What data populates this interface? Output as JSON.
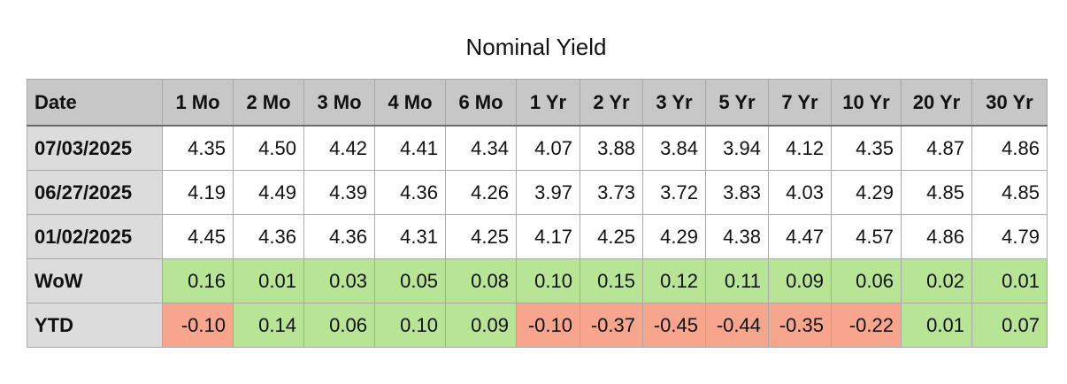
{
  "title": "Nominal Yield",
  "colors": {
    "positive": "#b8e495",
    "negative": "#f8a58d",
    "header": "#c6c7c6",
    "label_column": "#dcdcdc"
  },
  "headers": [
    "Date",
    "1 Mo",
    "2 Mo",
    "3 Mo",
    "4 Mo",
    "6 Mo",
    "1 Yr",
    "2 Yr",
    "3 Yr",
    "5 Yr",
    "7 Yr",
    "10 Yr",
    "20 Yr",
    "30 Yr"
  ],
  "rows": [
    {
      "label": "07/03/2025",
      "values": [
        "4.35",
        "4.50",
        "4.42",
        "4.41",
        "4.34",
        "4.07",
        "3.88",
        "3.84",
        "3.94",
        "4.12",
        "4.35",
        "4.87",
        "4.86"
      ]
    },
    {
      "label": "06/27/2025",
      "values": [
        "4.19",
        "4.49",
        "4.39",
        "4.36",
        "4.26",
        "3.97",
        "3.73",
        "3.72",
        "3.83",
        "4.03",
        "4.29",
        "4.85",
        "4.85"
      ]
    },
    {
      "label": "01/02/2025",
      "values": [
        "4.45",
        "4.36",
        "4.36",
        "4.31",
        "4.25",
        "4.17",
        "4.25",
        "4.29",
        "4.38",
        "4.47",
        "4.57",
        "4.86",
        "4.79"
      ]
    },
    {
      "label": "WoW",
      "values": [
        "0.16",
        "0.01",
        "0.03",
        "0.05",
        "0.08",
        "0.10",
        "0.15",
        "0.12",
        "0.11",
        "0.09",
        "0.06",
        "0.02",
        "0.01"
      ]
    },
    {
      "label": "YTD",
      "values": [
        "-0.10",
        "0.14",
        "0.06",
        "0.10",
        "0.09",
        "-0.10",
        "-0.37",
        "-0.45",
        "-0.44",
        "-0.35",
        "-0.22",
        "0.01",
        "0.07"
      ]
    }
  ]
}
